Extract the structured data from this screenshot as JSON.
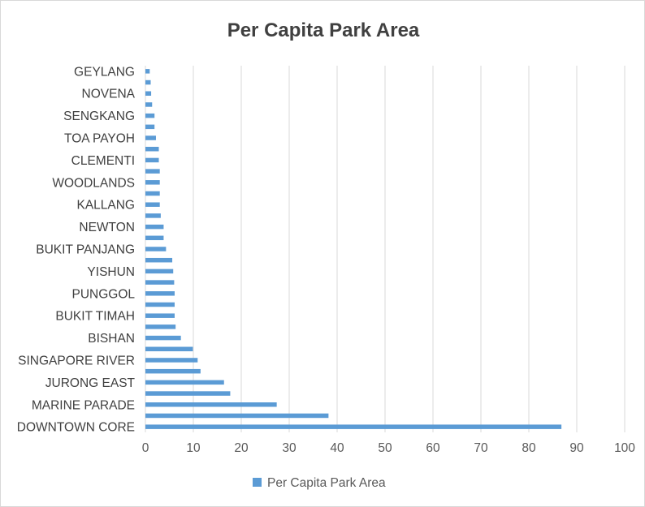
{
  "chart_data": {
    "type": "bar",
    "orientation": "horizontal",
    "title": "Per Capita Park Area",
    "xlim": [
      0,
      100
    ],
    "x_ticks": [
      "0",
      "10",
      "20",
      "30",
      "40",
      "50",
      "60",
      "70",
      "80",
      "90",
      "100"
    ],
    "grid": true,
    "legend_position": "bottom",
    "bar_color": "#5b9bd5",
    "categories_bottom_to_top": [
      "DOWNTOWN CORE",
      "",
      "MARINE PARADE",
      "",
      "JURONG EAST",
      "",
      "SINGAPORE RIVER",
      "",
      "BISHAN",
      "",
      "BUKIT TIMAH",
      "",
      "PUNGGOL",
      "",
      "YISHUN",
      "",
      "BUKIT PANJANG",
      "",
      "NEWTON",
      "",
      "KALLANG",
      "",
      "WOODLANDS",
      "",
      "CLEMENTI",
      "",
      "TOA PAYOH",
      "",
      "SENGKANG",
      "",
      "NOVENA",
      "",
      "GEYLANG"
    ],
    "series": [
      {
        "name": "Per Capita Park Area",
        "values": [
          86.8,
          38.2,
          27.4,
          17.7,
          16.4,
          11.5,
          10.9,
          9.9,
          7.4,
          6.3,
          6.1,
          6.1,
          6.1,
          6.0,
          5.8,
          5.6,
          4.3,
          3.8,
          3.8,
          3.2,
          3.0,
          3.0,
          3.0,
          3.0,
          2.8,
          2.8,
          2.2,
          1.9,
          1.9,
          1.4,
          1.2,
          1.1,
          0.9
        ]
      }
    ]
  }
}
